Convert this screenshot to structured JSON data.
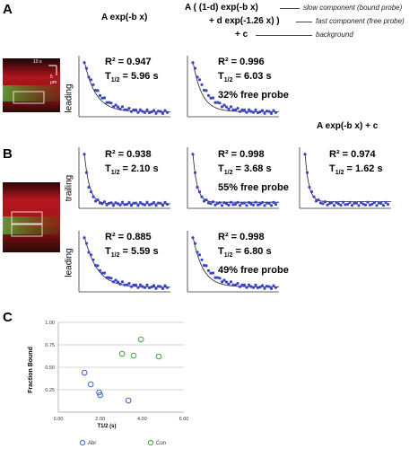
{
  "panel_labels": {
    "a": "A",
    "b": "B",
    "c": "C"
  },
  "headers": {
    "single": "A exp(-b x)",
    "two_line1": "A ( (1-d) exp(-b x)",
    "two_line2": "+ d exp(-1.26 x) )",
    "two_line3": "+ c",
    "slow_note": "slow component (bound probe)",
    "fast_note": "fast component (free probe)",
    "bg_note": "background",
    "offset": "A exp(-b x) + c"
  },
  "row_labels": {
    "a_row": "leading",
    "b_row1": "trailing",
    "b_row2": "leading"
  },
  "microscopy": {
    "time_bar": "10 s",
    "space_bar": "5 μm"
  },
  "stats": {
    "a_single": {
      "r2": "R² = 0.947",
      "t": "5.96 s"
    },
    "a_two": {
      "r2": "R² = 0.996",
      "t": "6.03 s",
      "free": "32% free probe"
    },
    "b1_single": {
      "r2": "R² = 0.938",
      "t": "2.10 s"
    },
    "b1_two": {
      "r2": "R² = 0.998",
      "t": "3.68 s",
      "free": "55% free probe"
    },
    "b1_offset": {
      "r2": "R² = 0.974",
      "t": "1.62 s"
    },
    "b2_single": {
      "r2": "R² = 0.885",
      "t": "5.59 s"
    },
    "b2_two": {
      "r2": "R² = 0.998",
      "t": "6.80 s",
      "free": "49% free probe"
    }
  },
  "t_label": "T",
  "t_sub": "1/2",
  "t_eq": " = ",
  "colors": {
    "points": "#3b45c8",
    "fit": "#222222",
    "abr": "#3a68c8",
    "con": "#3ea63a",
    "grid": "#c8c8c8"
  },
  "chart_data": {
    "type": "scatter",
    "xlabel": "T1/2 (s)",
    "ylabel": "Fraction Bound",
    "xlim": [
      0,
      6
    ],
    "ylim": [
      0,
      1
    ],
    "xticks": [
      "0.00",
      "2.00",
      "4.00",
      "6.00"
    ],
    "yticks": [
      "0.25",
      "0.50",
      "0.75",
      "1.00"
    ],
    "grid": true,
    "legend_position": "bottom",
    "series": [
      {
        "name": "Abr",
        "x": [
          1.25,
          1.55,
          1.95,
          2.0,
          3.35
        ],
        "y": [
          0.44,
          0.31,
          0.22,
          0.19,
          0.13
        ]
      },
      {
        "name": "Con",
        "x": [
          3.05,
          3.6,
          3.95,
          4.8
        ],
        "y": [
          0.65,
          0.63,
          0.81,
          0.62
        ]
      }
    ]
  }
}
